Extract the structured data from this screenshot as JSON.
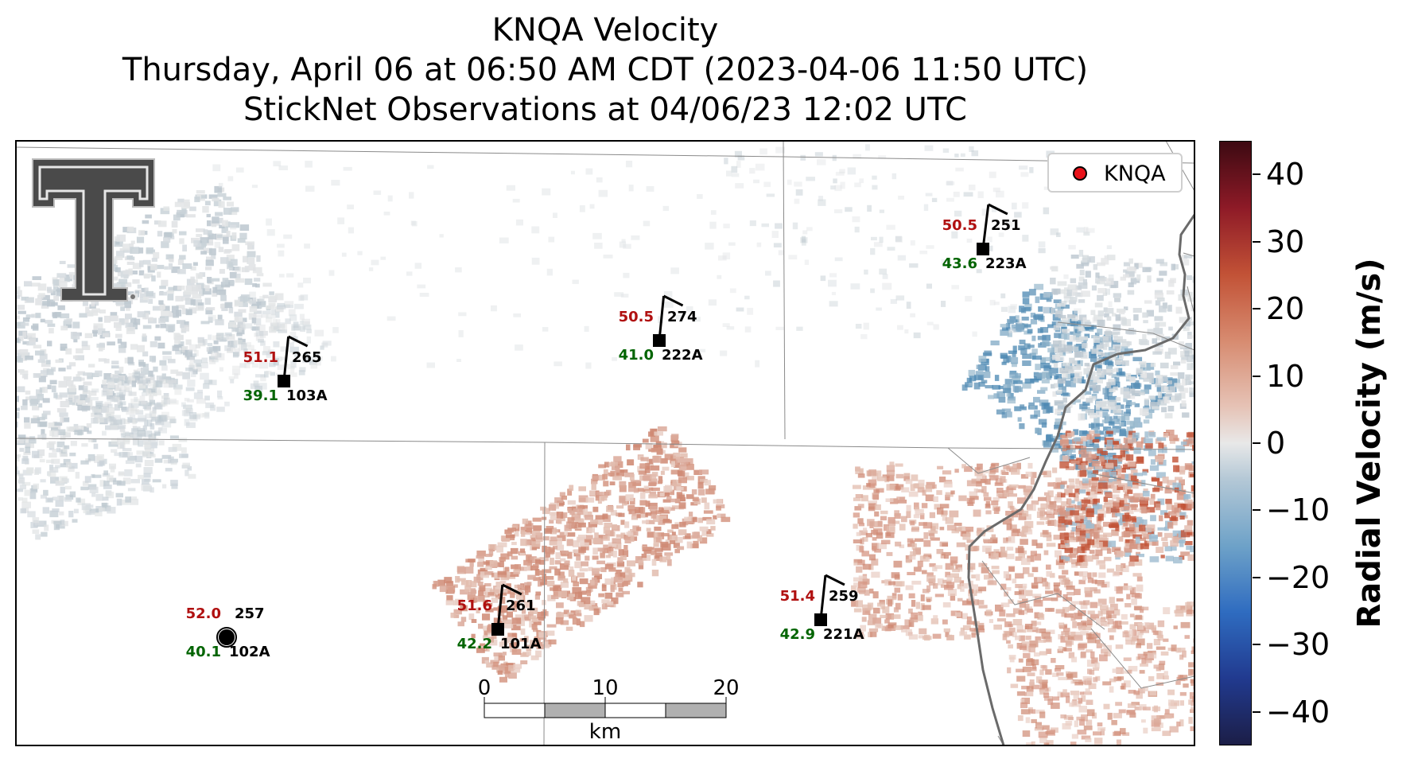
{
  "titles": {
    "line1": "KNQA Velocity",
    "line2": "Thursday, April 06 at 06:50 AM CDT (2023-04-06 11:50 UTC)",
    "line3": "StickNet Observations at 04/06/23 12:02 UTC"
  },
  "legend": {
    "label": "KNQA",
    "marker_color": "#e8121a"
  },
  "colorbar": {
    "title": "Radial Velocity (m/s)",
    "ticks": [
      "40",
      "30",
      "20",
      "10",
      "0",
      "−10",
      "−20",
      "−30",
      "−40"
    ],
    "range": [
      -45,
      45
    ]
  },
  "scalebar": {
    "ticks": [
      "0",
      "10",
      "20"
    ],
    "unit": "km"
  },
  "colors": {
    "temperature": "#b01010",
    "dewpoint": "#006400",
    "station": "#000000"
  },
  "stations": [
    {
      "id": "103A",
      "temp": "51.1",
      "dew": "39.1",
      "dir": "265"
    },
    {
      "id": "222A",
      "temp": "50.5",
      "dew": "41.0",
      "dir": "274"
    },
    {
      "id": "223A",
      "temp": "50.5",
      "dew": "43.6",
      "dir": "251"
    },
    {
      "id": "102A",
      "temp": "52.0",
      "dew": "40.1",
      "dir": "257"
    },
    {
      "id": "101A",
      "temp": "51.6",
      "dew": "42.2",
      "dir": "261"
    },
    {
      "id": "221A",
      "temp": "51.4",
      "dew": "42.9",
      "dir": "259"
    }
  ]
}
